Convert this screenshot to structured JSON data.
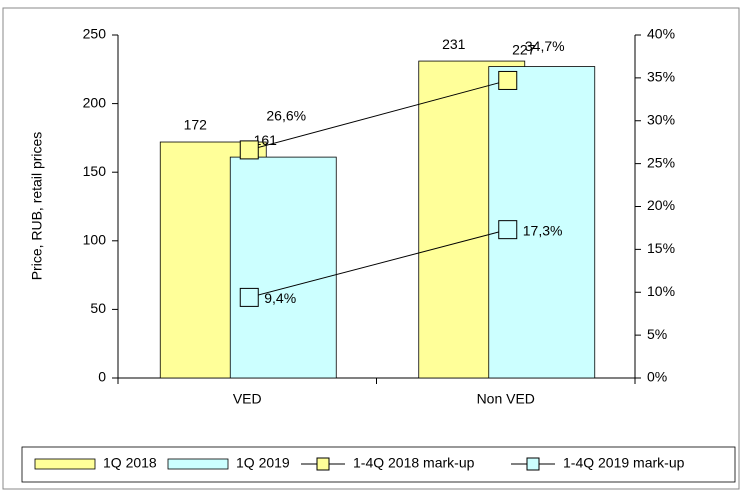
{
  "chart_data": {
    "type": "bar",
    "y_label": "Price, RUB, retail prices",
    "categories": [
      "VED",
      "Non VED"
    ],
    "series": [
      {
        "name": "1Q 2018",
        "color": "#ffff99",
        "values": [
          172,
          231
        ]
      },
      {
        "name": "1Q 2019",
        "color": "#ccffff",
        "values": [
          161,
          227
        ]
      },
      {
        "name": "1-4Q 2018 mark-up",
        "color": "#ffff99",
        "type": "line",
        "axis": "y2",
        "values": [
          26.6,
          34.7
        ],
        "value_labels": [
          "26,6%",
          "34,7%"
        ]
      },
      {
        "name": "1-4Q 2019 mark-up",
        "color": "#ccffff",
        "type": "line",
        "axis": "y2",
        "values": [
          9.4,
          17.3
        ],
        "value_labels": [
          "9,4%",
          "17,3%"
        ]
      }
    ],
    "ylim": [
      0,
      250
    ],
    "yticks": [
      0,
      50,
      100,
      150,
      200,
      250
    ],
    "y2lim": [
      0,
      40
    ],
    "y2ticks": [
      {
        "value": 0,
        "label": "0%"
      },
      {
        "value": 5,
        "label": "5%"
      },
      {
        "value": 10,
        "label": "10%"
      },
      {
        "value": 15,
        "label": "15%"
      },
      {
        "value": 20,
        "label": "20%"
      },
      {
        "value": 25,
        "label": "25%"
      },
      {
        "value": 30,
        "label": "30%"
      },
      {
        "value": 35,
        "label": "35%"
      },
      {
        "value": 40,
        "label": "40%"
      }
    ],
    "legend": "bottom"
  }
}
